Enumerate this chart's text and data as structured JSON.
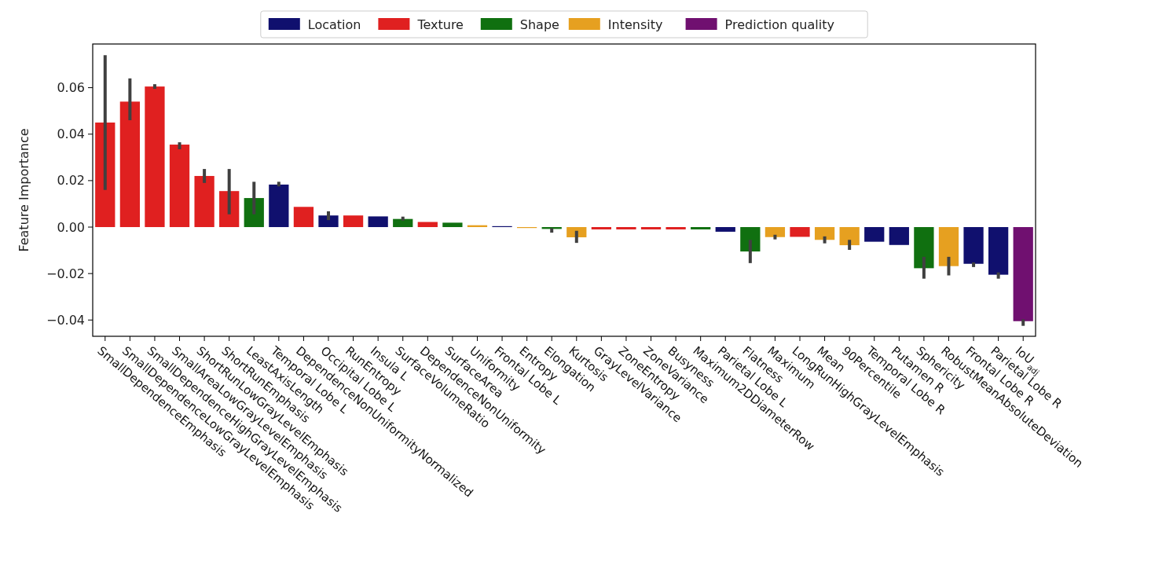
{
  "chart_data": {
    "type": "bar",
    "ylabel": "Feature Importance",
    "categories": [
      "SmallDependenceEmphasis",
      "SmallDependenceLowGrayLevelEmphasis",
      "SmallDependenceHighGrayLevelEmphasis",
      "SmallAreaLowGrayLevelEmphasis",
      "ShortRunLowGrayLevelEmphasis",
      "ShortRunEmphasis",
      "LeastAxisLength",
      "Temporal Lobe L",
      "DependenceNonUniformityNormalized",
      "Occipital Lobe L",
      "RunEntropy",
      "Insula L",
      "SurfaceVolumeRatio",
      "DependenceNonUniformity",
      "SurfaceArea",
      "Uniformity",
      "Frontal Lobe L",
      "Entropy",
      "Elongation",
      "Kurtosis",
      "GrayLevelVariance",
      "ZoneEntropy",
      "ZoneVariance",
      "Busyness",
      "Maximum2DDiameterRow",
      "Parietal Lobe L",
      "Flatness",
      "Maximum",
      "LongRunHighGrayLevelEmphasis",
      "Mean",
      "90Percentile",
      "Temporal Lobe R",
      "Putamen R",
      "Sphericity",
      "RobustMeanAbsoluteDeviation",
      "Frontal Lobe R",
      "Parietal Lobe R",
      "IoU$_{adj}$"
    ],
    "series": [
      {
        "name": "Location",
        "color": "#10106e",
        "values": [
          null,
          null,
          null,
          null,
          null,
          null,
          null,
          0.0183,
          null,
          0.005,
          null,
          0.0046,
          null,
          null,
          null,
          null,
          0.0004,
          null,
          null,
          null,
          null,
          null,
          null,
          null,
          null,
          -0.002,
          null,
          null,
          null,
          null,
          null,
          -0.0063,
          -0.0077,
          null,
          null,
          -0.0158,
          -0.0205,
          null
        ],
        "errors": [
          null,
          null,
          null,
          null,
          null,
          null,
          null,
          [
            0.0175,
            0.0195
          ],
          null,
          [
            0.003,
            0.0068
          ],
          null,
          null,
          null,
          null,
          null,
          null,
          null,
          null,
          null,
          null,
          null,
          null,
          null,
          null,
          null,
          null,
          null,
          null,
          null,
          null,
          null,
          null,
          null,
          null,
          null,
          [
            -0.0172,
            -0.0152
          ],
          [
            -0.0222,
            -0.0195
          ],
          null
        ]
      },
      {
        "name": "Texture",
        "color": "#e02020",
        "values": [
          0.045,
          0.054,
          0.0605,
          0.0355,
          0.022,
          0.0155,
          null,
          null,
          0.0087,
          null,
          0.005,
          null,
          null,
          0.0022,
          null,
          null,
          null,
          null,
          null,
          null,
          -0.001,
          -0.001,
          -0.001,
          -0.001,
          null,
          null,
          null,
          null,
          -0.0042,
          null,
          null,
          null,
          null,
          null,
          null,
          null,
          null,
          null
        ],
        "errors": [
          [
            0.016,
            0.074
          ],
          [
            0.046,
            0.064
          ],
          [
            0.0595,
            0.0615
          ],
          [
            0.0335,
            0.0365
          ],
          [
            0.019,
            0.025
          ],
          [
            0.0055,
            0.025
          ],
          null,
          null,
          null,
          null,
          null,
          null,
          null,
          null,
          null,
          null,
          null,
          null,
          null,
          null,
          null,
          null,
          null,
          null,
          null,
          null,
          null,
          null,
          null,
          null,
          null,
          null,
          null,
          null,
          null,
          null,
          null,
          null
        ]
      },
      {
        "name": "Shape",
        "color": "#107010",
        "values": [
          null,
          null,
          null,
          null,
          null,
          null,
          0.0125,
          null,
          null,
          null,
          null,
          null,
          0.0035,
          null,
          0.0019,
          null,
          null,
          null,
          -0.0008,
          null,
          null,
          null,
          null,
          null,
          -0.001,
          null,
          -0.0105,
          null,
          null,
          null,
          null,
          null,
          null,
          -0.0177,
          null,
          null,
          null,
          null
        ],
        "errors": [
          null,
          null,
          null,
          null,
          null,
          null,
          [
            0.0055,
            0.0195
          ],
          null,
          null,
          null,
          null,
          null,
          [
            0.0028,
            0.0045
          ],
          null,
          null,
          null,
          null,
          null,
          [
            -0.0024,
            -0.0005
          ],
          null,
          null,
          null,
          null,
          null,
          null,
          null,
          [
            -0.0155,
            -0.0055
          ],
          null,
          null,
          null,
          null,
          null,
          null,
          [
            -0.0222,
            -0.0128
          ],
          null,
          null,
          null,
          null
        ]
      },
      {
        "name": "Intensity",
        "color": "#e6a020",
        "values": [
          null,
          null,
          null,
          null,
          null,
          null,
          null,
          null,
          null,
          null,
          null,
          null,
          null,
          null,
          null,
          0.0008,
          null,
          -0.0004,
          null,
          -0.0044,
          null,
          null,
          null,
          null,
          null,
          null,
          null,
          -0.0043,
          null,
          -0.0055,
          -0.0078,
          null,
          null,
          null,
          -0.0168,
          null,
          null,
          null
        ],
        "errors": [
          null,
          null,
          null,
          null,
          null,
          null,
          null,
          null,
          null,
          null,
          null,
          null,
          null,
          null,
          null,
          null,
          null,
          null,
          null,
          [
            -0.0068,
            -0.0016
          ],
          null,
          null,
          null,
          null,
          null,
          null,
          null,
          [
            -0.0053,
            -0.0033
          ],
          null,
          [
            -0.007,
            -0.004
          ],
          [
            -0.0098,
            -0.0055
          ],
          null,
          null,
          null,
          [
            -0.0208,
            -0.0128
          ],
          null,
          null,
          null
        ]
      },
      {
        "name": "Prediction quality",
        "color": "#701070",
        "values": [
          null,
          null,
          null,
          null,
          null,
          null,
          null,
          null,
          null,
          null,
          null,
          null,
          null,
          null,
          null,
          null,
          null,
          null,
          null,
          null,
          null,
          null,
          null,
          null,
          null,
          null,
          null,
          null,
          null,
          null,
          null,
          null,
          null,
          null,
          null,
          null,
          null,
          -0.0405
        ],
        "errors": [
          null,
          null,
          null,
          null,
          null,
          null,
          null,
          null,
          null,
          null,
          null,
          null,
          null,
          null,
          null,
          null,
          null,
          null,
          null,
          null,
          null,
          null,
          null,
          null,
          null,
          null,
          null,
          null,
          null,
          null,
          null,
          null,
          null,
          null,
          null,
          null,
          null,
          [
            -0.0425,
            -0.0397
          ]
        ]
      }
    ],
    "ylim": [
      -0.047,
      0.0788
    ],
    "yticks": [
      {
        "value": -0.04,
        "label": "−0.04"
      },
      {
        "value": -0.02,
        "label": "−0.02"
      },
      {
        "value": 0,
        "label": "0.00"
      },
      {
        "value": 0.02,
        "label": "0.02"
      },
      {
        "value": 0.04,
        "label": "0.04"
      },
      {
        "value": 0.06,
        "label": "0.06"
      }
    ],
    "legend": "top",
    "grid": false
  }
}
